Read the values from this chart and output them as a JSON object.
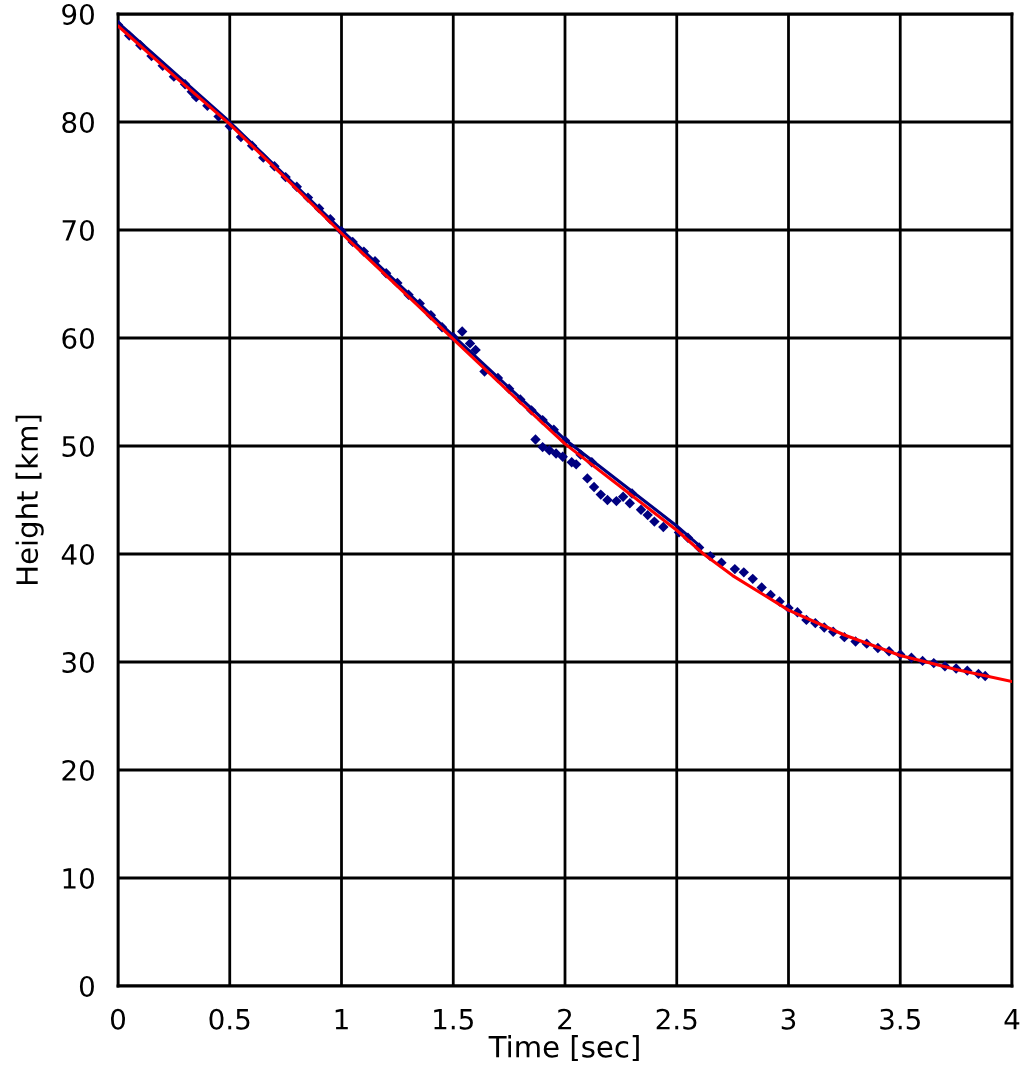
{
  "chart_data": {
    "type": "scatter",
    "xlabel": "Time [sec]",
    "ylabel": "Height [km]",
    "xlim": [
      0,
      4
    ],
    "ylim": [
      0,
      90
    ],
    "xticks": [
      0,
      0.5,
      1,
      1.5,
      2,
      2.5,
      3,
      3.5,
      4
    ],
    "yticks": [
      0,
      10,
      20,
      30,
      40,
      50,
      60,
      70,
      80,
      90
    ],
    "grid": true,
    "series": [
      {
        "color": "#000080",
        "marker": "diamond",
        "x": [
          0.0,
          0.05,
          0.1,
          0.15,
          0.2,
          0.25,
          0.3,
          0.33,
          0.35,
          0.4,
          0.45,
          0.5,
          0.55,
          0.6,
          0.65,
          0.7,
          0.75,
          0.8,
          0.85,
          0.9,
          0.95,
          1.0,
          1.05,
          1.1,
          1.15,
          1.2,
          1.25,
          1.3,
          1.35,
          1.4,
          1.45,
          1.5,
          1.54,
          1.575,
          1.6,
          1.64,
          1.7,
          1.75,
          1.8,
          1.85,
          1.9,
          1.95,
          2.0,
          2.07,
          2.12,
          1.868,
          1.9,
          1.93,
          1.96,
          1.99,
          2.03,
          2.05,
          2.1,
          2.13,
          2.16,
          2.19,
          2.23,
          2.26,
          2.29,
          2.3,
          2.34,
          2.37,
          2.4,
          2.44,
          2.51,
          2.55,
          2.6,
          2.65,
          2.7,
          2.76,
          2.8,
          2.84,
          2.88,
          2.92,
          2.96,
          3.0,
          3.04,
          3.08,
          3.12,
          3.16,
          3.2,
          3.25,
          3.3,
          3.35,
          3.4,
          3.45,
          3.5,
          3.55,
          3.6,
          3.65,
          3.7,
          3.75,
          3.8,
          3.85,
          3.88
        ],
        "values": [
          89.0,
          88.0,
          87.1,
          86.1,
          85.2,
          84.2,
          83.5,
          82.8,
          82.3,
          81.5,
          80.5,
          79.6,
          78.6,
          77.8,
          76.7,
          75.9,
          74.9,
          74.0,
          73.0,
          72.0,
          71.0,
          69.9,
          68.9,
          68.0,
          67.1,
          66.0,
          65.1,
          64.0,
          63.2,
          62.1,
          61.0,
          60.1,
          60.6,
          59.5,
          58.9,
          56.9,
          56.3,
          55.3,
          54.3,
          53.3,
          52.4,
          51.5,
          50.5,
          49.2,
          48.5,
          50.6,
          49.9,
          49.6,
          49.3,
          49.0,
          48.5,
          48.3,
          47.0,
          46.2,
          45.5,
          45.0,
          44.9,
          45.3,
          44.7,
          45.6,
          44.1,
          43.6,
          43.0,
          42.5,
          42.0,
          41.5,
          40.6,
          39.8,
          39.2,
          38.6,
          38.3,
          37.7,
          36.9,
          36.2,
          35.6,
          35.0,
          34.6,
          33.9,
          33.6,
          33.2,
          32.8,
          32.3,
          31.9,
          31.7,
          31.3,
          31.0,
          30.7,
          30.4,
          30.1,
          29.9,
          29.6,
          29.4,
          29.2,
          28.9,
          28.7
        ]
      },
      {
        "type": "line",
        "color": "#000080",
        "marker": "none",
        "x": [
          0,
          0.5,
          1,
          1.5,
          1.75,
          2,
          2.25,
          2.5,
          2.6
        ],
        "values": [
          89.2,
          80.0,
          70.0,
          60.2,
          55.4,
          50.6,
          46.6,
          42.6,
          40.8
        ]
      },
      {
        "type": "line",
        "color": "#ff0000",
        "marker": "none",
        "x": [
          0,
          0.25,
          0.5,
          0.75,
          1,
          1.25,
          1.5,
          1.75,
          2,
          2.25,
          2.5,
          2.62,
          2.75,
          3,
          3.25,
          3.5,
          3.75,
          4
        ],
        "values": [
          88.9,
          84.3,
          79.8,
          74.8,
          69.7,
          64.8,
          59.9,
          55.0,
          50.2,
          46.2,
          42.2,
          40.0,
          38.0,
          34.8,
          32.5,
          30.6,
          29.3,
          28.2
        ]
      }
    ]
  }
}
